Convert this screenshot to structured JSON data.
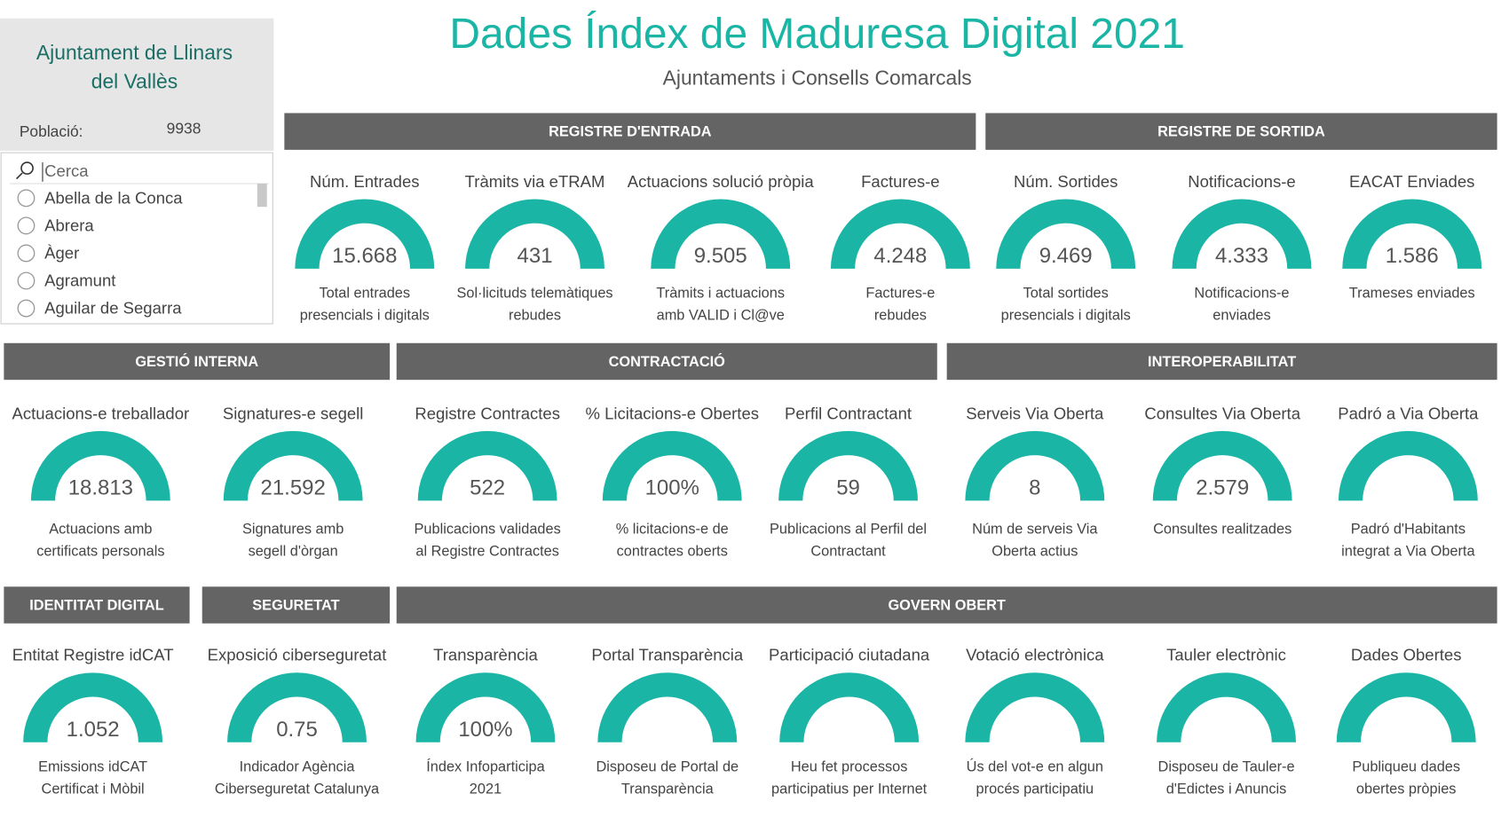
{
  "header": {
    "title": "Dades Índex de Maduresa Digital 2021",
    "subtitle": "Ajuntaments i Consells Comarcals"
  },
  "sidebar": {
    "municipality": "Ajuntament de Llinars del Vallès",
    "population_label": "Població:",
    "population": "9938",
    "search_placeholder": "Cerca",
    "items": [
      "Abella de la Conca",
      "Abrera",
      "Àger",
      "Agramunt",
      "Aguilar de Segarra"
    ]
  },
  "sections": [
    {
      "title": "REGISTRE D'ENTRADA",
      "kpis": [
        {
          "title": "Núm. Entrades",
          "value": "15.668",
          "caption": [
            "Total entrades",
            "presencials i digitals"
          ]
        },
        {
          "title": "Tràmits via eTRAM",
          "value": "431",
          "caption": [
            "Sol·licituds telemàtiques",
            "rebudes"
          ]
        },
        {
          "title": "Actuacions solució pròpia",
          "value": "9.505",
          "caption": [
            "Tràmits i actuacions",
            "amb VALID i Cl@ve"
          ]
        },
        {
          "title": "Factures-e",
          "value": "4.248",
          "caption": [
            "Factures-e",
            "rebudes"
          ]
        }
      ]
    },
    {
      "title": "REGISTRE DE SORTIDA",
      "kpis": [
        {
          "title": "Núm. Sortides",
          "value": "9.469",
          "caption": [
            "Total sortides",
            "presencials i digitals"
          ]
        },
        {
          "title": "Notificacions-e",
          "value": "4.333",
          "caption": [
            "Notificacions-e",
            "enviades"
          ]
        },
        {
          "title": "EACAT Enviades",
          "value": "1.586",
          "caption": [
            "Trameses enviades"
          ]
        }
      ]
    },
    {
      "title": "GESTIÓ INTERNA",
      "kpis": [
        {
          "title": "Actuacions-e treballador",
          "value": "18.813",
          "caption": [
            "Actuacions amb",
            "certificats personals"
          ]
        },
        {
          "title": "Signatures-e segell",
          "value": "21.592",
          "caption": [
            "Signatures amb",
            "segell d'òrgan"
          ]
        }
      ]
    },
    {
      "title": "CONTRACTACIÓ",
      "kpis": [
        {
          "title": "Registre Contractes",
          "value": "522",
          "caption": [
            "Publicacions validades",
            "al Registre Contractes"
          ]
        },
        {
          "title": "% Licitacions-e Obertes",
          "value": "100%",
          "caption": [
            "% licitacions-e de",
            "contractes oberts"
          ]
        },
        {
          "title": "Perfil Contractant",
          "value": "59",
          "caption": [
            "Publicacions al Perfil del",
            "Contractant"
          ]
        }
      ]
    },
    {
      "title": "INTEROPERABILITAT",
      "kpis": [
        {
          "title": "Serveis Via Oberta",
          "value": "8",
          "caption": [
            "Núm de serveis Via",
            "Oberta actius"
          ]
        },
        {
          "title": "Consultes Via Oberta",
          "value": "2.579",
          "caption": [
            "Consultes realitzades"
          ]
        },
        {
          "title": "Padró a Via Oberta",
          "caption": [
            "Padró d'Habitants",
            "integrat a Via Oberta"
          ]
        }
      ]
    },
    {
      "title": "IDENTITAT DIGITAL",
      "kpis": [
        {
          "title": "Entitat Registre idCAT",
          "value": "1.052",
          "caption": [
            "Emissions idCAT",
            "Certificat i Mòbil"
          ]
        }
      ]
    },
    {
      "title": "SEGURETAT",
      "kpis": [
        {
          "title": "Exposició ciberseguretat",
          "value": "0.75",
          "caption": [
            "Indicador Agència",
            "Ciberseguretat Catalunya"
          ]
        }
      ]
    },
    {
      "title": "GOVERN OBERT",
      "kpis": [
        {
          "title": "Transparència",
          "value": "100%",
          "caption": [
            "Índex Infoparticipa",
            "2021"
          ]
        },
        {
          "title": "Portal Transparència",
          "caption": [
            "Disposeu de Portal de",
            "Transparència"
          ]
        },
        {
          "title": "Participació ciutadana",
          "caption": [
            "Heu fet processos",
            "participatius per Internet"
          ]
        },
        {
          "title": "Votació electrònica",
          "caption": [
            "Ús del vot-e en algun",
            "procés participatiu"
          ]
        },
        {
          "title": "Tauler electrònic",
          "caption": [
            "Disposeu de Tauler-e",
            "d'Edictes i Anuncis"
          ]
        },
        {
          "title": "Dades Obertes",
          "caption": [
            "Publiqueu dades",
            "obertes pròpies"
          ]
        }
      ]
    }
  ]
}
